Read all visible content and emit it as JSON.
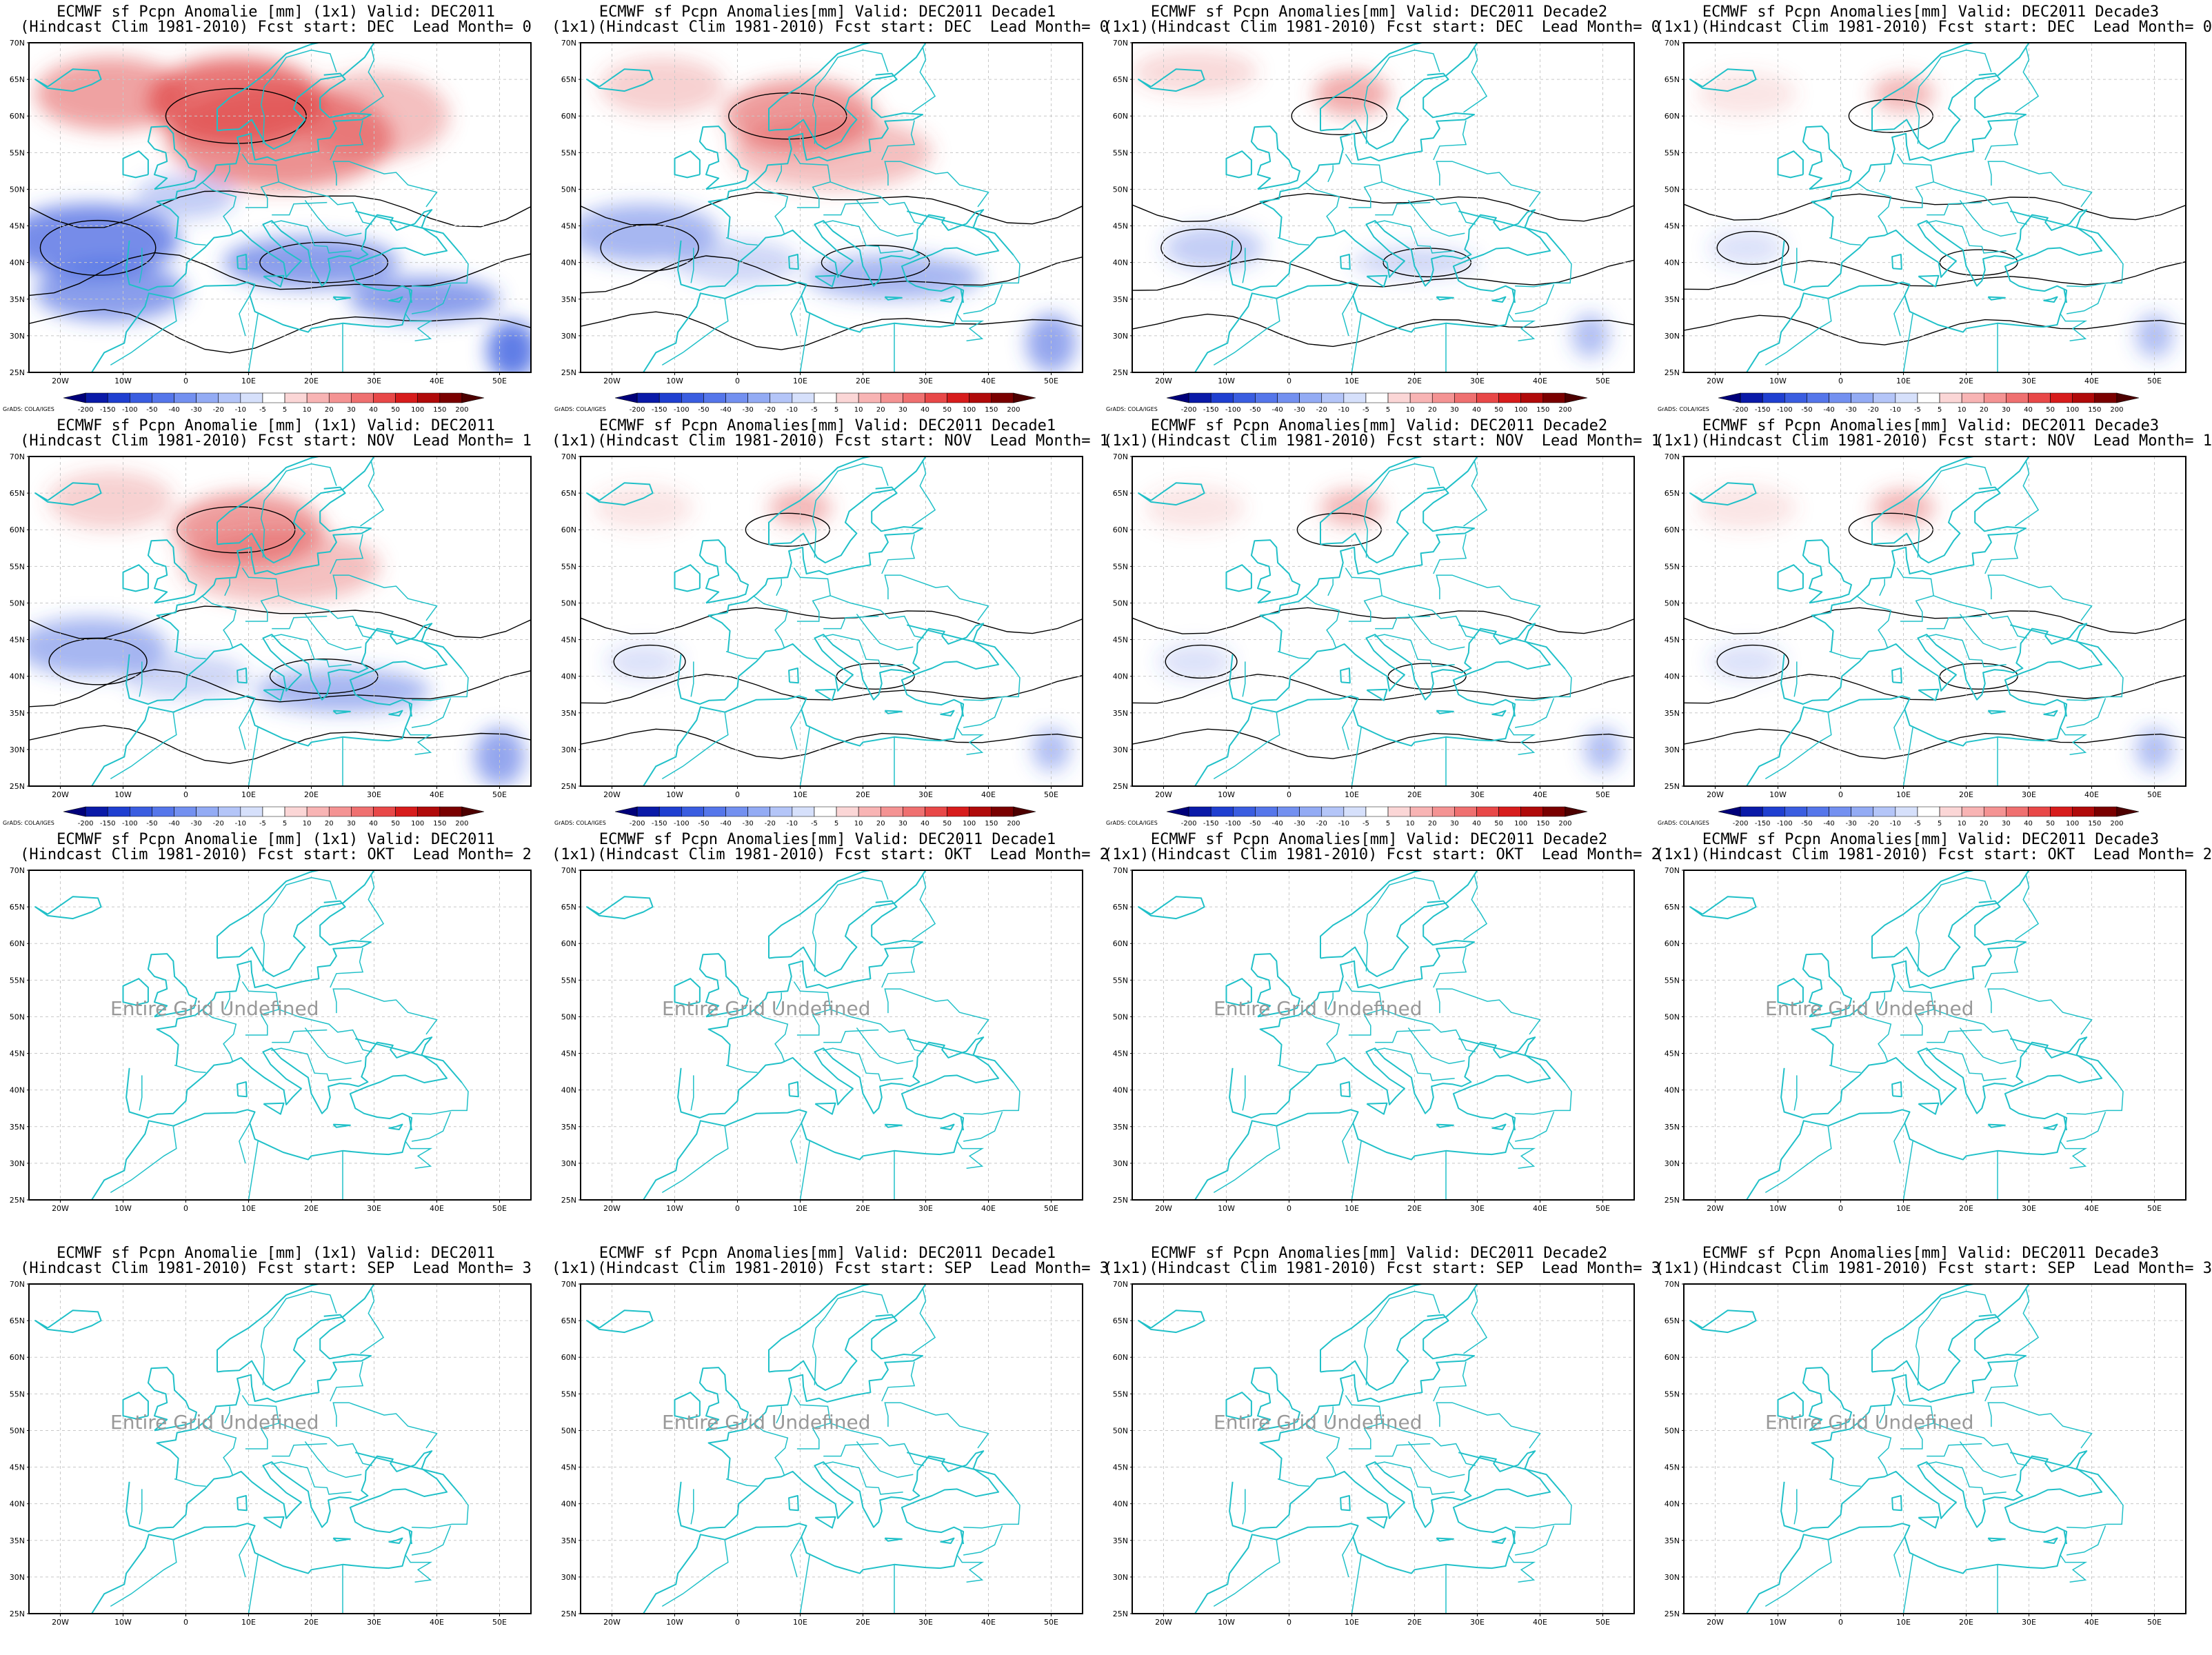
{
  "figure": {
    "panels": [
      {
        "title1": "ECMWF sf Pcpn Anomalie [mm] (1x1) Valid: DEC2011",
        "title2": "(Hindcast Clim 1981-2010) Fcst start: DEC  Lead Month= 0",
        "state": "strong",
        "colorbar": true
      },
      {
        "title1": "ECMWF sf Pcpn Anomalies[mm] Valid: DEC2011 Decade1",
        "title2": "(1x1)(Hindcast Clim 1981-2010) Fcst start: DEC  Lead Month= 0",
        "state": "medium",
        "colorbar": true
      },
      {
        "title1": "ECMWF sf Pcpn Anomalies[mm] Valid: DEC2011 Decade2",
        "title2": "(1x1)(Hindcast Clim 1981-2010) Fcst start: DEC  Lead Month= 0",
        "state": "light",
        "colorbar": true
      },
      {
        "title1": "ECMWF sf Pcpn Anomalies[mm] Valid: DEC2011 Decade3",
        "title2": "(1x1)(Hindcast Clim 1981-2010) Fcst start: DEC  Lead Month= 0",
        "state": "faint",
        "colorbar": true
      },
      {
        "title1": "ECMWF sf Pcpn Anomalie [mm] (1x1) Valid: DEC2011",
        "title2": "(Hindcast Clim 1981-2010) Fcst start: NOV  Lead Month= 1",
        "state": "medium",
        "colorbar": true
      },
      {
        "title1": "ECMWF sf Pcpn Anomalies[mm] Valid: DEC2011 Decade1",
        "title2": "(1x1)(Hindcast Clim 1981-2010) Fcst start: NOV  Lead Month= 1",
        "state": "faint",
        "colorbar": true
      },
      {
        "title1": "ECMWF sf Pcpn Anomalies[mm] Valid: DEC2011 Decade2",
        "title2": "(1x1)(Hindcast Clim 1981-2010) Fcst start: NOV  Lead Month= 1",
        "state": "faint",
        "colorbar": true
      },
      {
        "title1": "ECMWF sf Pcpn Anomalies[mm] Valid: DEC2011 Decade3",
        "title2": "(1x1)(Hindcast Clim 1981-2010) Fcst start: NOV  Lead Month= 1",
        "state": "faint",
        "colorbar": true
      },
      {
        "title1": "ECMWF sf Pcpn Anomalie [mm] (1x1) Valid: DEC2011",
        "title2": "(Hindcast Clim 1981-2010) Fcst start: OKT  Lead Month= 2",
        "state": "undefined",
        "colorbar": false
      },
      {
        "title1": "ECMWF sf Pcpn Anomalies[mm] Valid: DEC2011 Decade1",
        "title2": "(1x1)(Hindcast Clim 1981-2010) Fcst start: OKT  Lead Month= 2",
        "state": "undefined",
        "colorbar": false
      },
      {
        "title1": "ECMWF sf Pcpn Anomalies[mm] Valid: DEC2011 Decade2",
        "title2": "(1x1)(Hindcast Clim 1981-2010) Fcst start: OKT  Lead Month= 2",
        "state": "undefined",
        "colorbar": false
      },
      {
        "title1": "ECMWF sf Pcpn Anomalies[mm] Valid: DEC2011 Decade3",
        "title2": "(1x1)(Hindcast Clim 1981-2010) Fcst start: OKT  Lead Month= 2",
        "state": "undefined",
        "colorbar": false
      },
      {
        "title1": "ECMWF sf Pcpn Anomalie [mm] (1x1) Valid: DEC2011",
        "title2": "(Hindcast Clim 1981-2010) Fcst start: SEP  Lead Month= 3",
        "state": "undefined",
        "colorbar": false
      },
      {
        "title1": "ECMWF sf Pcpn Anomalies[mm] Valid: DEC2011 Decade1",
        "title2": "(1x1)(Hindcast Clim 1981-2010) Fcst start: SEP  Lead Month= 3",
        "state": "undefined",
        "colorbar": false
      },
      {
        "title1": "ECMWF sf Pcpn Anomalies[mm] Valid: DEC2011 Decade2",
        "title2": "(1x1)(Hindcast Clim 1981-2010) Fcst start: SEP  Lead Month= 3",
        "state": "undefined",
        "colorbar": false
      },
      {
        "title1": "ECMWF sf Pcpn Anomalies[mm] Valid: DEC2011 Decade3",
        "title2": "(1x1)(Hindcast Clim 1981-2010) Fcst start: SEP  Lead Month= 3",
        "state": "undefined",
        "colorbar": false
      }
    ],
    "undefined_message": "Entire Grid Undefined",
    "lat_ticks": [
      "70N",
      "65N",
      "60N",
      "55N",
      "50N",
      "45N",
      "40N",
      "35N",
      "30N",
      "25N"
    ],
    "lon_ticks": [
      "20W",
      "10W",
      "0",
      "10E",
      "20E",
      "30E",
      "40E",
      "50E"
    ],
    "colorbar": {
      "credit": "GrADS: COLA/IGES",
      "labels": [
        "-200",
        "-150",
        "-100",
        "-50",
        "-40",
        "-30",
        "-20",
        "-10",
        "-5",
        "5",
        "10",
        "20",
        "30",
        "40",
        "50",
        "100",
        "150",
        "200"
      ],
      "colors": [
        "#00007a",
        "#0a1aa8",
        "#1f3fd0",
        "#3a5de0",
        "#5576ea",
        "#7390f0",
        "#93abf4",
        "#b4c5f8",
        "#d6e0fb",
        "#ffffff",
        "#fbd6d6",
        "#f8b4b4",
        "#f49393",
        "#ef7070",
        "#e84848",
        "#d71c1c",
        "#b00a0a",
        "#7a0000",
        "#4d0000"
      ]
    },
    "colors": {
      "coastline": "#20c0c8",
      "contour": "#000000",
      "undefined_text": "#999999",
      "positive": "#e04848",
      "negative": "#3a5de0"
    }
  }
}
